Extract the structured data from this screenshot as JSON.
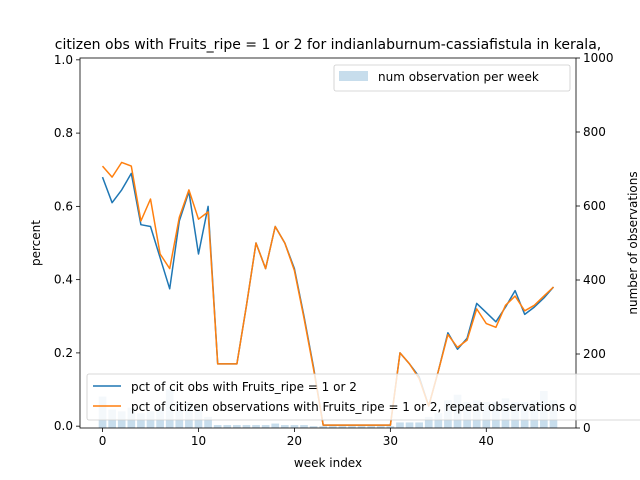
{
  "chart_data": {
    "type": "line",
    "title": "citizen obs with Fruits_ripe = 1 or 2 for indianlaburnum-cassiafistula in kerala,",
    "xlabel": "week index",
    "ylabel": "percent",
    "y2label": "number of observations",
    "xlim": [
      -2.35,
      49.35
    ],
    "ylim": [
      -0.005,
      1.005
    ],
    "y2lim": [
      0,
      1000
    ],
    "xticks": [
      0,
      10,
      20,
      30,
      40
    ],
    "yticks": [
      "0.0",
      "0.2",
      "0.4",
      "0.6",
      "0.8",
      "1.0"
    ],
    "y2ticks": [
      "0",
      "200",
      "400",
      "600",
      "800",
      "1000"
    ],
    "x": [
      0,
      1,
      2,
      3,
      4,
      5,
      6,
      7,
      8,
      9,
      10,
      11,
      12,
      13,
      14,
      15,
      16,
      17,
      18,
      19,
      20,
      21,
      22,
      23,
      24,
      25,
      26,
      27,
      28,
      29,
      30,
      31,
      32,
      33,
      34,
      35,
      36,
      37,
      38,
      39,
      40,
      41,
      42,
      43,
      44,
      45,
      46,
      47
    ],
    "series": [
      {
        "name": "pct of cit obs with Fruits_ripe = 1 or 2",
        "color": "#1f77b4",
        "values": [
          0.68,
          0.61,
          0.645,
          0.69,
          0.55,
          0.545,
          0.46,
          0.375,
          0.56,
          0.64,
          0.47,
          0.6,
          0.17,
          0.17,
          0.17,
          0.33,
          0.5,
          0.43,
          0.545,
          0.5,
          0.43,
          0.3,
          0.16,
          0.003,
          0.003,
          0.003,
          0.003,
          0.003,
          0.003,
          0.003,
          0.003,
          0.2,
          0.17,
          0.135,
          0.055,
          0.15,
          0.255,
          0.21,
          0.24,
          0.335,
          0.31,
          0.285,
          0.325,
          0.37,
          0.305,
          0.325,
          0.35,
          0.38
        ]
      },
      {
        "name": "pct of citizen observations with Fruits_ripe = 1 or 2, repeat observations o",
        "color": "#ff7f0e",
        "values": [
          0.71,
          0.68,
          0.72,
          0.71,
          0.56,
          0.62,
          0.47,
          0.43,
          0.57,
          0.645,
          0.565,
          0.585,
          0.17,
          0.17,
          0.17,
          0.33,
          0.5,
          0.43,
          0.545,
          0.5,
          0.425,
          0.295,
          0.155,
          0.003,
          0.003,
          0.003,
          0.003,
          0.003,
          0.003,
          0.003,
          0.003,
          0.2,
          0.17,
          0.13,
          0.055,
          0.15,
          0.25,
          0.215,
          0.235,
          0.32,
          0.28,
          0.27,
          0.33,
          0.355,
          0.315,
          0.33,
          0.355,
          0.38
        ]
      }
    ],
    "bars": {
      "name": "num observation per week",
      "color": "#1f77b4",
      "alpha": 0.25,
      "values": [
        85,
        50,
        45,
        55,
        40,
        45,
        55,
        105,
        70,
        70,
        55,
        30,
        8,
        8,
        8,
        8,
        8,
        8,
        12,
        8,
        8,
        8,
        5,
        5,
        5,
        5,
        5,
        5,
        5,
        5,
        5,
        15,
        15,
        15,
        30,
        40,
        75,
        90,
        70,
        75,
        70,
        70,
        80,
        70,
        70,
        75,
        100,
        75
      ]
    },
    "legend_upper_right": "num observation per week",
    "legend_lower": [
      "pct of cit obs with Fruits_ripe = 1 or 2",
      "pct of citizen observations with Fruits_ripe = 1 or 2, repeat observations o"
    ]
  }
}
